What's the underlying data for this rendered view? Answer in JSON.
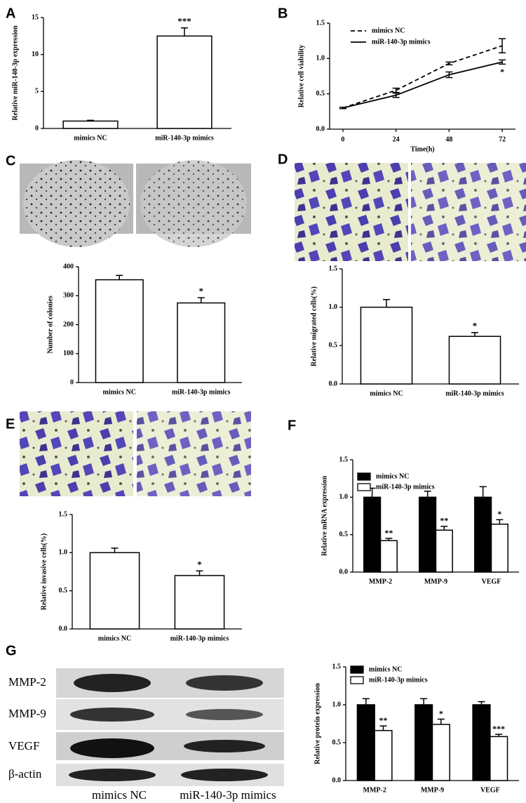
{
  "chart_data": [
    {
      "type": "bar",
      "panel": "A",
      "ylabel": "Relative  miR-140-3p expression",
      "categories": [
        "mimics NC",
        "miR-140-3p mimics"
      ],
      "values": [
        1,
        12.5
      ],
      "errors": [
        0.1,
        1.1
      ],
      "sig": [
        null,
        "***"
      ],
      "color": "#ffffff",
      "ylim": [
        0,
        15
      ],
      "yticks": [
        0,
        5,
        10,
        15
      ]
    },
    {
      "type": "line",
      "panel": "B",
      "xlabel": "Time(h)",
      "ylabel": "Relative cell viability",
      "x": [
        0,
        24,
        48,
        72
      ],
      "xlim": [
        -6,
        78
      ],
      "xticks": [
        0,
        24,
        48,
        72
      ],
      "ylim": [
        0,
        1.5
      ],
      "yticks": [
        {
          "value": 0,
          "label": "0.0"
        },
        0.5,
        {
          "value": 1,
          "label": "1.0"
        },
        1.5
      ],
      "series": [
        {
          "name": "mimics NC",
          "color": "#000000",
          "line_style": "dashed",
          "values": [
            0.3,
            0.55,
            0.93,
            1.18
          ],
          "errors": [
            0.01,
            0.03,
            0.02,
            0.1
          ]
        },
        {
          "name": "miR-140-3p mimics",
          "color": "#000000",
          "line_style": "solid",
          "values": [
            0.3,
            0.48,
            0.77,
            0.95
          ],
          "errors": [
            0.01,
            0.03,
            0.04,
            0.03
          ],
          "sig": [
            null,
            null,
            null,
            "*"
          ]
        }
      ]
    },
    {
      "type": "bar",
      "panel": "C",
      "ylabel": "Number of colonies",
      "categories": [
        "mimics NC",
        "miR-140-3p mimics"
      ],
      "values": [
        355,
        275
      ],
      "errors": [
        15,
        18
      ],
      "sig": [
        null,
        "*"
      ],
      "color": "#ffffff",
      "ylim": [
        0,
        400
      ],
      "yticks": [
        0,
        100,
        200,
        300,
        400
      ]
    },
    {
      "type": "bar",
      "panel": "D",
      "ylabel": "Relative migrated cells(%)",
      "categories": [
        "mimics NC",
        "miR-140-3p mimics"
      ],
      "values": [
        1.0,
        0.62
      ],
      "errors": [
        0.1,
        0.05
      ],
      "sig": [
        null,
        "*"
      ],
      "color": "#ffffff",
      "ylim": [
        0,
        1.5
      ],
      "yticks": [
        {
          "value": 0,
          "label": "0.0"
        },
        0.5,
        {
          "value": 1,
          "label": "1.0"
        },
        1.5
      ]
    },
    {
      "type": "bar",
      "panel": "E",
      "ylabel": "Relative invasive cells(%)",
      "categories": [
        "mimics NC",
        "miR-140-3p mimics"
      ],
      "values": [
        1.0,
        0.7
      ],
      "errors": [
        0.06,
        0.06
      ],
      "sig": [
        null,
        "*"
      ],
      "color": "#ffffff",
      "ylim": [
        0,
        1.5
      ],
      "yticks": [
        {
          "value": 0,
          "label": "0.0"
        },
        0.5,
        {
          "value": 1,
          "label": "1.0"
        },
        1.5
      ]
    },
    {
      "type": "grouped_bar",
      "panel": "F",
      "ylabel": "Relative mRNA expression",
      "categories": [
        "MMP-2",
        "MMP-9",
        "VEGF"
      ],
      "ylim": [
        0,
        1.5
      ],
      "yticks": [
        {
          "value": 0,
          "label": "0.0"
        },
        0.5,
        {
          "value": 1,
          "label": "1.0"
        },
        1.5
      ],
      "series": [
        {
          "name": "mimics NC",
          "color": "#000000",
          "values": [
            1.0,
            1.0,
            1.0
          ],
          "errors": [
            0.12,
            0.08,
            0.14
          ]
        },
        {
          "name": "miR-140-3p mimics",
          "color": "#ffffff",
          "values": [
            0.42,
            0.56,
            0.64
          ],
          "errors": [
            0.03,
            0.05,
            0.06
          ],
          "sig": [
            "**",
            "**",
            "*"
          ]
        }
      ]
    },
    {
      "type": "grouped_bar",
      "panel": "G",
      "ylabel": "Relative protein expression",
      "categories": [
        "MMP-2",
        "MMP-9",
        "VEGF"
      ],
      "ylim": [
        0,
        1.5
      ],
      "yticks": [
        {
          "value": 0,
          "label": "0.0"
        },
        0.5,
        {
          "value": 1,
          "label": "1.0"
        },
        1.5
      ],
      "blot_rows": [
        "MMP-2",
        "MMP-9",
        "VEGF",
        "β-actin"
      ],
      "blot_lanes": [
        "mimics NC",
        "miR-140-3p mimics"
      ],
      "series": [
        {
          "name": "mimics NC",
          "color": "#000000",
          "values": [
            1.0,
            1.0,
            1.0
          ],
          "errors": [
            0.08,
            0.08,
            0.04
          ]
        },
        {
          "name": "miR-140-3p mimics",
          "color": "#ffffff",
          "values": [
            0.66,
            0.74,
            0.58
          ],
          "errors": [
            0.06,
            0.07,
            0.03
          ],
          "sig": [
            "**",
            "*",
            "***"
          ]
        }
      ]
    }
  ]
}
